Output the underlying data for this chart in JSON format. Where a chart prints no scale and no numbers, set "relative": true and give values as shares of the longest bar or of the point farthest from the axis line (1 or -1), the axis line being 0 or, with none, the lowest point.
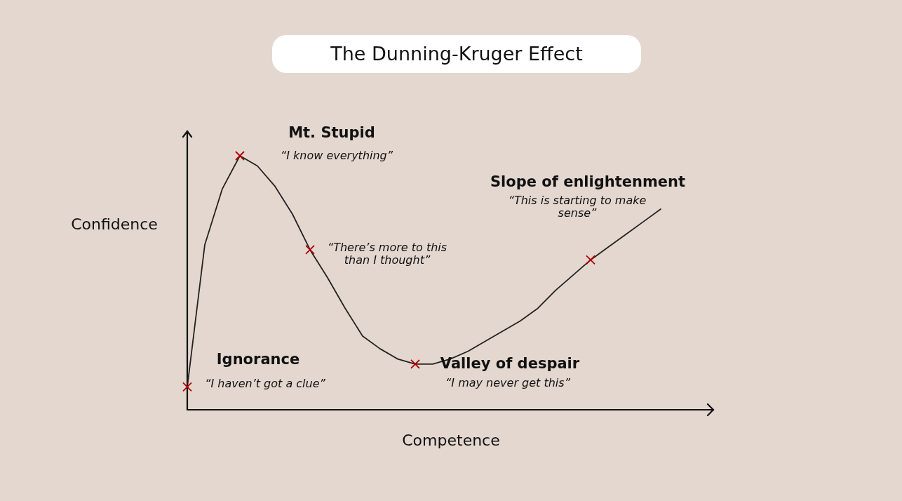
{
  "chart_data": {
    "type": "line",
    "title": "The Dunning-Kruger Effect",
    "xlabel": "Competence",
    "ylabel": "Confidence",
    "relative": true,
    "categories": [
      null,
      null,
      null,
      null,
      null,
      null,
      null,
      null,
      null,
      null,
      null,
      null,
      null,
      null,
      null,
      null,
      null,
      null,
      null,
      null,
      null,
      null,
      null,
      null,
      null,
      null,
      null,
      null
    ],
    "series": [
      {
        "color": "#222222",
        "values": [
          0.09,
          0.65,
          0.87,
          1.0,
          0.96,
          0.88,
          0.77,
          0.63,
          0.52,
          0.4,
          0.29,
          0.24,
          0.2,
          0.18,
          0.18,
          0.2,
          0.23,
          0.27,
          0.31,
          0.35,
          0.4,
          0.47,
          0.53,
          0.59,
          0.64,
          0.69,
          0.74,
          0.79
        ]
      }
    ],
    "annotations": [
      "Mt. Stupid",
      "“I know everything”",
      "“There’s more to this than I thought”",
      "Slope of enlightenment",
      "“This is starting to make sense”",
      "Ignorance",
      "“I haven’t got a clue”",
      "Valley of despair",
      "“I may never get this”"
    ]
  }
}
